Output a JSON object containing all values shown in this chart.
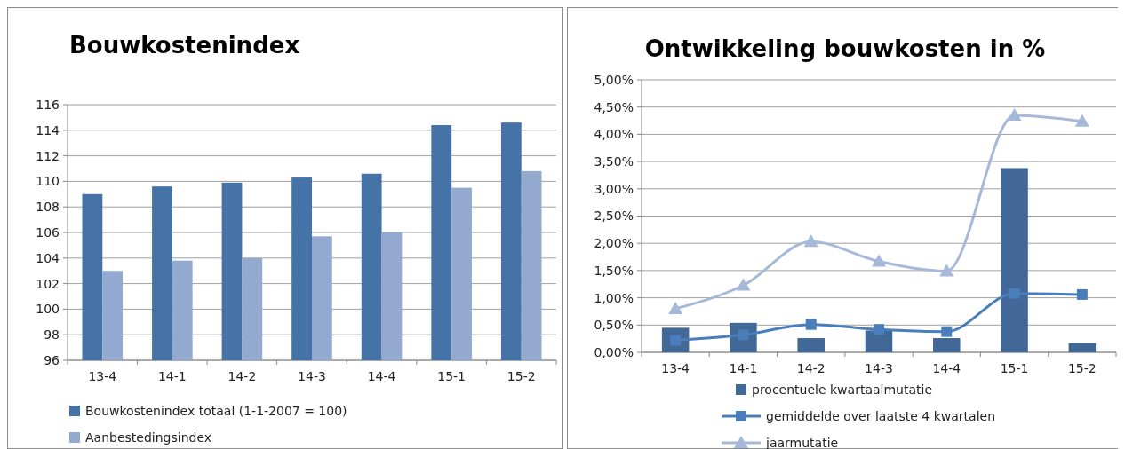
{
  "chart_data": [
    {
      "type": "bar",
      "title": "Bouwkostenindex",
      "categories": [
        "13-4",
        "14-1",
        "14-2",
        "14-3",
        "14-4",
        "15-1",
        "15-2"
      ],
      "series": [
        {
          "name": "Bouwkostenindex totaal (1-1-2007 = 100)",
          "color": "#4572a7",
          "values": [
            109.0,
            109.6,
            109.9,
            110.3,
            110.6,
            114.4,
            114.6
          ]
        },
        {
          "name": "Aanbestedingsindex",
          "color": "#93a9cf",
          "values": [
            103.0,
            103.8,
            104.0,
            105.7,
            106.0,
            109.5,
            110.8
          ]
        }
      ],
      "ylim": [
        96,
        116
      ],
      "yticks": [
        96,
        98,
        100,
        102,
        104,
        106,
        108,
        110,
        112,
        114,
        116
      ],
      "grid": "y",
      "legend": "bottom"
    },
    {
      "type": "bar",
      "title": "Ontwikkeling bouwkosten in %",
      "categories": [
        "13-4",
        "14-1",
        "14-2",
        "14-3",
        "14-4",
        "15-1",
        "15-2"
      ],
      "series": [
        {
          "name": "procentuele kwartaalmutatie",
          "color": "#416897",
          "values": [
            0.45,
            0.54,
            0.26,
            0.4,
            0.26,
            3.38,
            0.17
          ]
        },
        {
          "name": "gemiddelde over laatste 4 kwartalen",
          "color": "#4a7ebb",
          "type": "line",
          "marker": "square",
          "values": [
            0.22,
            0.32,
            0.51,
            0.42,
            0.38,
            1.08,
            1.06
          ]
        },
        {
          "name": "jaarmutatie",
          "color": "#a7b9da",
          "type": "line",
          "marker": "triangle",
          "values": [
            0.8,
            1.23,
            2.03,
            1.67,
            1.49,
            4.35,
            4.24
          ]
        }
      ],
      "ylim": [
        0,
        5
      ],
      "yticks": [
        {
          "value": 0,
          "label": "0,00%"
        },
        {
          "value": 0.5,
          "label": "0,50%"
        },
        {
          "value": 1,
          "label": "1,00%"
        },
        {
          "value": 1.5,
          "label": "1,50%"
        },
        {
          "value": 2,
          "label": "2,00%"
        },
        {
          "value": 2.5,
          "label": "2,50%"
        },
        {
          "value": 3,
          "label": "3,00%"
        },
        {
          "value": 3.5,
          "label": "3,50%"
        },
        {
          "value": 4,
          "label": "4,00%"
        },
        {
          "value": 4.5,
          "label": "4,50%"
        },
        {
          "value": 5,
          "label": "5,00%"
        }
      ],
      "grid": "y",
      "legend": "bottom"
    }
  ]
}
